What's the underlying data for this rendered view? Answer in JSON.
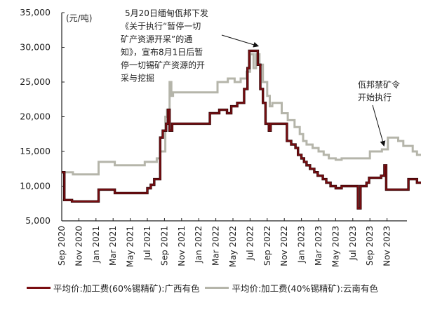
{
  "chart_data": {
    "type": "line",
    "step": true,
    "unit_label": "(元/吨)",
    "ylabel": "",
    "xlabel": "",
    "ylim": [
      5000,
      35000
    ],
    "yticks": [
      5000,
      10000,
      15000,
      20000,
      25000,
      30000,
      35000
    ],
    "ytick_labels": [
      "5,000",
      "10,000",
      "15,000",
      "20,000",
      "25,000",
      "30,000",
      "35,000"
    ],
    "xticks": [
      "Sep 2020",
      "Nov 2020",
      "Jan 2021",
      "Mar 2021",
      "May 2021",
      "Jul 2021",
      "Sep 2021",
      "Nov 2021",
      "Jan 2022",
      "Mar 2022",
      "May 2022",
      "Jul 2022",
      "Sep 2022",
      "Nov 2022",
      "Jan 2023",
      "Mar 2023",
      "May 2023",
      "Jul 2023",
      "Sep 2023",
      "Nov 2023"
    ],
    "x_unit": "months since Sep 2020",
    "x_range": [
      0,
      39
    ],
    "grid": false,
    "legend_position": "bottom",
    "series": [
      {
        "name": "平均价:加工费(60%锡精矿):广西有色",
        "color": "#7a0e12",
        "points": [
          [
            0,
            12000
          ],
          [
            0.3,
            12000
          ],
          [
            0.3,
            8000
          ],
          [
            1.2,
            8000
          ],
          [
            1.2,
            7800
          ],
          [
            4.3,
            7800
          ],
          [
            4.3,
            9500
          ],
          [
            6.2,
            9500
          ],
          [
            6.2,
            9000
          ],
          [
            10.0,
            9000
          ],
          [
            10.0,
            9700
          ],
          [
            10.4,
            9700
          ],
          [
            10.4,
            10200
          ],
          [
            10.8,
            10200
          ],
          [
            10.8,
            11000
          ],
          [
            11.5,
            11000
          ],
          [
            11.5,
            17000
          ],
          [
            11.8,
            17000
          ],
          [
            11.8,
            18000
          ],
          [
            12.2,
            18000
          ],
          [
            12.2,
            19000
          ],
          [
            12.4,
            19000
          ],
          [
            12.4,
            21000
          ],
          [
            12.6,
            21000
          ],
          [
            12.6,
            18000
          ],
          [
            12.9,
            18000
          ],
          [
            12.9,
            19000
          ],
          [
            17.3,
            19000
          ],
          [
            17.3,
            20500
          ],
          [
            18.4,
            20500
          ],
          [
            18.4,
            21000
          ],
          [
            19.3,
            21000
          ],
          [
            19.3,
            20500
          ],
          [
            19.8,
            20500
          ],
          [
            19.8,
            21500
          ],
          [
            20.5,
            21500
          ],
          [
            20.5,
            22000
          ],
          [
            21.3,
            22000
          ],
          [
            21.3,
            24000
          ],
          [
            21.7,
            24000
          ],
          [
            21.7,
            27000
          ],
          [
            21.9,
            27000
          ],
          [
            21.9,
            29500
          ],
          [
            22.9,
            29500
          ],
          [
            22.9,
            27500
          ],
          [
            23.2,
            27500
          ],
          [
            23.2,
            24000
          ],
          [
            23.5,
            24000
          ],
          [
            23.5,
            22000
          ],
          [
            23.8,
            22000
          ],
          [
            23.8,
            19000
          ],
          [
            24.2,
            19000
          ],
          [
            24.2,
            18000
          ],
          [
            24.4,
            18000
          ],
          [
            24.4,
            19000
          ],
          [
            26.3,
            19000
          ],
          [
            26.3,
            16500
          ],
          [
            26.8,
            16500
          ],
          [
            26.8,
            16000
          ],
          [
            27.3,
            16000
          ],
          [
            27.3,
            15500
          ],
          [
            27.6,
            15500
          ],
          [
            27.6,
            14500
          ],
          [
            28.0,
            14500
          ],
          [
            28.0,
            14000
          ],
          [
            28.3,
            14000
          ],
          [
            28.3,
            13500
          ],
          [
            28.6,
            13500
          ],
          [
            28.6,
            13000
          ],
          [
            29.0,
            13000
          ],
          [
            29.0,
            12500
          ],
          [
            29.5,
            12500
          ],
          [
            29.5,
            12000
          ],
          [
            29.9,
            12000
          ],
          [
            29.9,
            11500
          ],
          [
            30.5,
            11500
          ],
          [
            30.5,
            11000
          ],
          [
            30.9,
            11000
          ],
          [
            30.9,
            10500
          ],
          [
            31.4,
            10500
          ],
          [
            31.4,
            10000
          ],
          [
            32.0,
            10000
          ],
          [
            32.0,
            9700
          ],
          [
            32.7,
            9700
          ],
          [
            32.7,
            10000
          ],
          [
            34.6,
            10000
          ],
          [
            34.6,
            6800
          ],
          [
            34.9,
            6800
          ],
          [
            34.9,
            10000
          ],
          [
            35.6,
            10000
          ],
          [
            35.6,
            10500
          ],
          [
            35.9,
            10500
          ],
          [
            35.9,
            11200
          ],
          [
            37.3,
            11200
          ],
          [
            37.3,
            11500
          ],
          [
            37.7,
            11500
          ],
          [
            37.7,
            13000
          ],
          [
            37.9,
            13000
          ],
          [
            37.9,
            9500
          ],
          [
            40.5,
            9500
          ],
          [
            40.5,
            11000
          ],
          [
            41.5,
            11000
          ],
          [
            41.5,
            10500
          ],
          [
            42.0,
            10500
          ]
        ]
      },
      {
        "name": "平均价:加工费(40%锡精矿):云南有色",
        "color": "#b5b5aa",
        "points": [
          [
            0,
            8000
          ],
          [
            0.3,
            8000
          ],
          [
            0.3,
            12000
          ],
          [
            1.3,
            12000
          ],
          [
            1.3,
            11700
          ],
          [
            4.3,
            11700
          ],
          [
            4.3,
            13500
          ],
          [
            6.2,
            13500
          ],
          [
            6.2,
            13000
          ],
          [
            9.7,
            13000
          ],
          [
            9.7,
            13500
          ],
          [
            11.1,
            13500
          ],
          [
            11.1,
            14000
          ],
          [
            11.5,
            14000
          ],
          [
            11.5,
            15000
          ],
          [
            12.1,
            15000
          ],
          [
            12.1,
            20000
          ],
          [
            12.3,
            20000
          ],
          [
            12.3,
            21000
          ],
          [
            12.6,
            21000
          ],
          [
            12.6,
            25000
          ],
          [
            12.8,
            25000
          ],
          [
            12.8,
            23000
          ],
          [
            13.0,
            23000
          ],
          [
            13.0,
            23500
          ],
          [
            18.2,
            23500
          ],
          [
            18.2,
            25000
          ],
          [
            19.4,
            25000
          ],
          [
            19.4,
            25500
          ],
          [
            20.2,
            25500
          ],
          [
            20.2,
            25000
          ],
          [
            20.9,
            25000
          ],
          [
            20.9,
            25500
          ],
          [
            21.6,
            25500
          ],
          [
            21.6,
            26500
          ],
          [
            22.0,
            26500
          ],
          [
            22.0,
            29000
          ],
          [
            22.4,
            29000
          ],
          [
            22.4,
            27000
          ],
          [
            22.7,
            27000
          ],
          [
            22.7,
            29000
          ],
          [
            23.1,
            29000
          ],
          [
            23.1,
            27500
          ],
          [
            23.5,
            27500
          ],
          [
            23.5,
            25000
          ],
          [
            24.0,
            25000
          ],
          [
            24.0,
            23000
          ],
          [
            24.3,
            23000
          ],
          [
            24.3,
            21500
          ],
          [
            24.6,
            21500
          ],
          [
            24.6,
            22000
          ],
          [
            25.7,
            22000
          ],
          [
            25.7,
            20500
          ],
          [
            26.4,
            20500
          ],
          [
            26.4,
            19500
          ],
          [
            27.2,
            19500
          ],
          [
            27.2,
            18500
          ],
          [
            27.8,
            18500
          ],
          [
            27.8,
            17500
          ],
          [
            28.2,
            17500
          ],
          [
            28.2,
            16500
          ],
          [
            28.6,
            16500
          ],
          [
            28.6,
            16000
          ],
          [
            29.3,
            16000
          ],
          [
            29.3,
            15500
          ],
          [
            30.0,
            15500
          ],
          [
            30.0,
            15000
          ],
          [
            30.6,
            15000
          ],
          [
            30.6,
            14500
          ],
          [
            31.2,
            14500
          ],
          [
            31.2,
            14000
          ],
          [
            32.0,
            14000
          ],
          [
            32.0,
            13800
          ],
          [
            32.7,
            13800
          ],
          [
            32.7,
            14000
          ],
          [
            36.0,
            14000
          ],
          [
            36.0,
            15000
          ],
          [
            37.4,
            15000
          ],
          [
            37.4,
            15300
          ],
          [
            38.1,
            15300
          ],
          [
            38.1,
            17000
          ],
          [
            39.3,
            17000
          ],
          [
            39.3,
            16500
          ],
          [
            39.9,
            16500
          ],
          [
            39.9,
            15800
          ],
          [
            41.0,
            15800
          ],
          [
            41.0,
            15000
          ],
          [
            41.5,
            15000
          ],
          [
            41.5,
            14500
          ],
          [
            42.0,
            14500
          ]
        ]
      }
    ],
    "annotations": [
      {
        "text_lines": [
          "5月20日缅甸佤邦下发",
          "《关于执行“暂停一切",
          "矿产资源开采”的通",
          "知》，宣布8月1日后暂",
          "停一切锡矿产资源的开",
          "采与挖掘"
        ],
        "arrow_to": [
          21.9,
          29800
        ]
      },
      {
        "text_lines": [
          "佤邦禁矿令",
          "开始执行"
        ],
        "arrow_to": [
          37.3,
          15500
        ]
      }
    ]
  },
  "legend": {
    "items": [
      {
        "label": "平均价:加工费(60%锡精矿):广西有色",
        "color": "#7a0e12"
      },
      {
        "label": "平均价:加工费(40%锡精矿):云南有色",
        "color": "#b5b5aa"
      }
    ]
  }
}
